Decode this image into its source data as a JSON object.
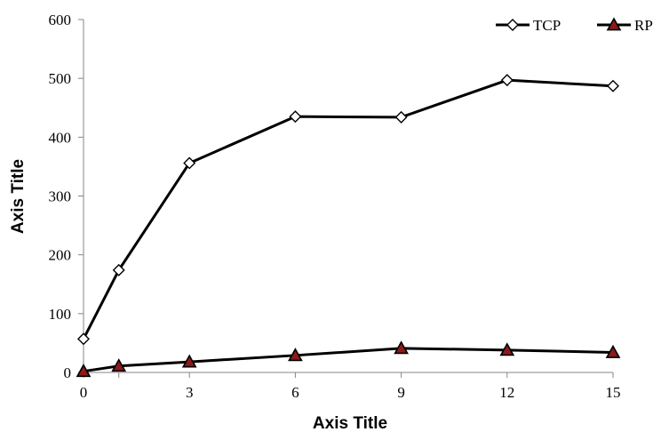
{
  "chart_data": {
    "type": "line",
    "title": "",
    "xlabel": "Axis Title",
    "ylabel": "Axis Title",
    "x": [
      0,
      1,
      3,
      6,
      9,
      12,
      15
    ],
    "xticks": [
      0,
      3,
      6,
      9,
      12,
      15
    ],
    "xlim": [
      0,
      15
    ],
    "yticks": [
      0,
      100,
      200,
      300,
      400,
      500,
      600
    ],
    "ylim": [
      0,
      600
    ],
    "grid": false,
    "legend_position": "top-right",
    "series": [
      {
        "name": "TCP",
        "values": [
          57,
          174,
          356,
          435,
          434,
          497,
          487
        ],
        "marker": "diamond",
        "marker_fill": "#ffffff",
        "marker_stroke": "#000000",
        "line_color": "#000000"
      },
      {
        "name": "RP",
        "values": [
          2,
          11,
          18,
          29,
          41,
          38,
          34
        ],
        "marker": "triangle",
        "marker_fill": "#8b1a1a",
        "marker_stroke": "#000000",
        "line_color": "#000000"
      }
    ]
  }
}
